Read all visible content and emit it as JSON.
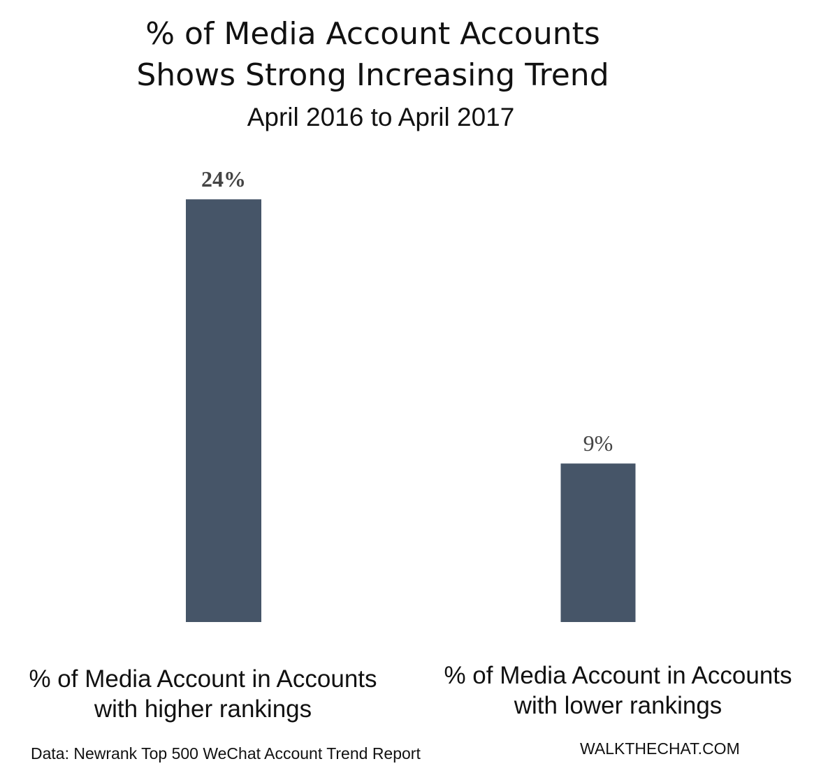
{
  "chart_data": {
    "type": "bar",
    "title_lines": [
      "% of Media Account Accounts",
      "Shows Strong Increasing Trend"
    ],
    "subtitle": "April 2016 to April 2017",
    "categories": [
      [
        "% of Media Account in Accounts",
        "with higher rankings"
      ],
      [
        "% of Media Account in Accounts",
        "with lower rankings"
      ]
    ],
    "values": [
      24,
      9
    ],
    "value_labels": [
      "24%",
      "9%"
    ],
    "unit": "%",
    "bar_color": "#465568",
    "label_color": "#444444",
    "grid": false,
    "legend": "none"
  },
  "footer": {
    "source": "Data: Newrank Top 500 WeChat Account Trend Report",
    "brand": "WALKTHECHAT.COM"
  }
}
